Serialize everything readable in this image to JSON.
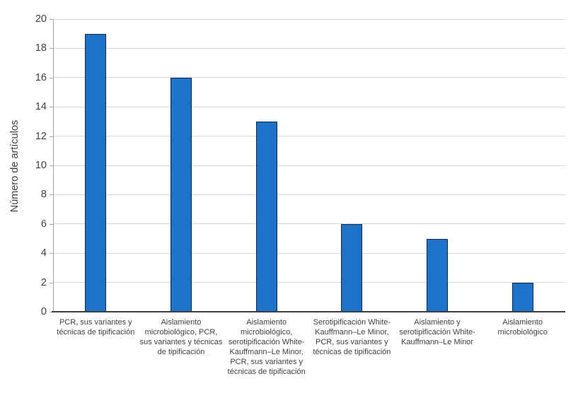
{
  "chart_data": {
    "type": "bar",
    "title": "",
    "ylabel": "Número de artículos",
    "xlabel": "",
    "categories": [
      "PCR, sus variantes y técnicas de tipificación",
      "Aislamiento microbiológico, PCR, sus variantes y técnicas de tipificación",
      "Aislamiento microbiológico, serotipificación White-Kauffmann–Le Minor, PCR, sus variantes y técnicas de tipificación",
      "Serotipificación White-Kauffmann–Le Minor, PCR, sus variantes y técnicas de tipificación",
      "Aislamiento y serotipificación White-Kauffmann–Le Minor",
      "Aislamiento microbiológico"
    ],
    "values": [
      19,
      16,
      13,
      6,
      5,
      2
    ],
    "ylim": [
      0,
      20
    ],
    "ytick_step": 2,
    "ytick_labels": [
      "0",
      "2",
      "4",
      "6",
      "8",
      "10",
      "12",
      "14",
      "16",
      "18",
      "20"
    ],
    "grid": true,
    "legend": "none",
    "colors": {
      "bar_fill": "#1e73c8",
      "bar_border": "#122742",
      "gridline": "#d9d9d9",
      "y_axis_line": "#a6a6a6",
      "x_axis_line": "#404040",
      "text": "#404040",
      "background": "#ffffff"
    }
  }
}
